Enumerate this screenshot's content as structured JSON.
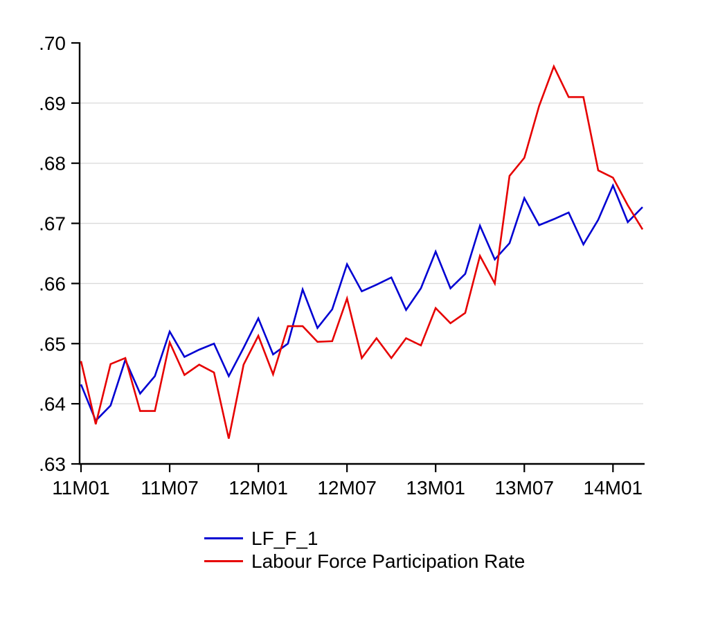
{
  "figure": {
    "background": "#ffffff",
    "axis_color": "#000000",
    "grid_color": "#d9d9d9",
    "text_color": "#000000"
  },
  "chart_data": {
    "type": "line",
    "x": [
      "11M01",
      "11M02",
      "11M03",
      "11M04",
      "11M05",
      "11M06",
      "11M07",
      "11M08",
      "11M09",
      "11M10",
      "11M11",
      "11M12",
      "12M01",
      "12M02",
      "12M03",
      "12M04",
      "12M05",
      "12M06",
      "12M07",
      "12M08",
      "12M09",
      "12M10",
      "12M11",
      "12M12",
      "13M01",
      "13M02",
      "13M03",
      "13M04",
      "13M05",
      "13M06",
      "13M07",
      "13M08",
      "13M09",
      "13M10",
      "13M11",
      "13M12",
      "14M01",
      "14M02",
      "14M03"
    ],
    "series": [
      {
        "name": "LF_F_1",
        "color": "#0000d2",
        "values": [
          0.6432,
          0.6372,
          0.6397,
          0.6473,
          0.6417,
          0.6446,
          0.652,
          0.6478,
          0.649,
          0.65,
          0.6446,
          0.6493,
          0.6542,
          0.6482,
          0.65,
          0.659,
          0.6526,
          0.6557,
          0.6632,
          0.6587,
          0.6598,
          0.661,
          0.6556,
          0.6592,
          0.6653,
          0.6592,
          0.6616,
          0.6696,
          0.664,
          0.6667,
          0.6742,
          0.6697,
          0.6707,
          0.6718,
          0.6665,
          0.6706,
          0.6763,
          0.6702,
          0.6727
        ]
      },
      {
        "name": "Labour Force Participation Rate",
        "color": "#e60000",
        "values": [
          0.6471,
          0.6366,
          0.6466,
          0.6476,
          0.6388,
          0.6388,
          0.6502,
          0.6448,
          0.6465,
          0.6452,
          0.6342,
          0.6465,
          0.6513,
          0.6449,
          0.6529,
          0.6529,
          0.6503,
          0.6504,
          0.6575,
          0.6476,
          0.6509,
          0.6476,
          0.6509,
          0.6497,
          0.6559,
          0.6534,
          0.6551,
          0.6646,
          0.66,
          0.6779,
          0.6809,
          0.6895,
          0.6961,
          0.691,
          0.691,
          0.6788,
          0.6776,
          0.673,
          0.669
        ]
      }
    ],
    "ylim": [
      0.63,
      0.7
    ],
    "yticks": [
      0.63,
      0.64,
      0.65,
      0.66,
      0.67,
      0.68,
      0.69,
      0.7
    ],
    "ytick_labels": [
      ".63",
      ".64",
      ".65",
      ".66",
      ".67",
      ".68",
      ".69",
      ".70"
    ],
    "xtick_indices": [
      0,
      6,
      12,
      18,
      24,
      30,
      36
    ],
    "xtick_labels": [
      "11M01",
      "11M07",
      "12M01",
      "12M07",
      "13M01",
      "13M07",
      "14M01"
    ],
    "grid": "horizontal",
    "legend_position": "bottom-left"
  }
}
